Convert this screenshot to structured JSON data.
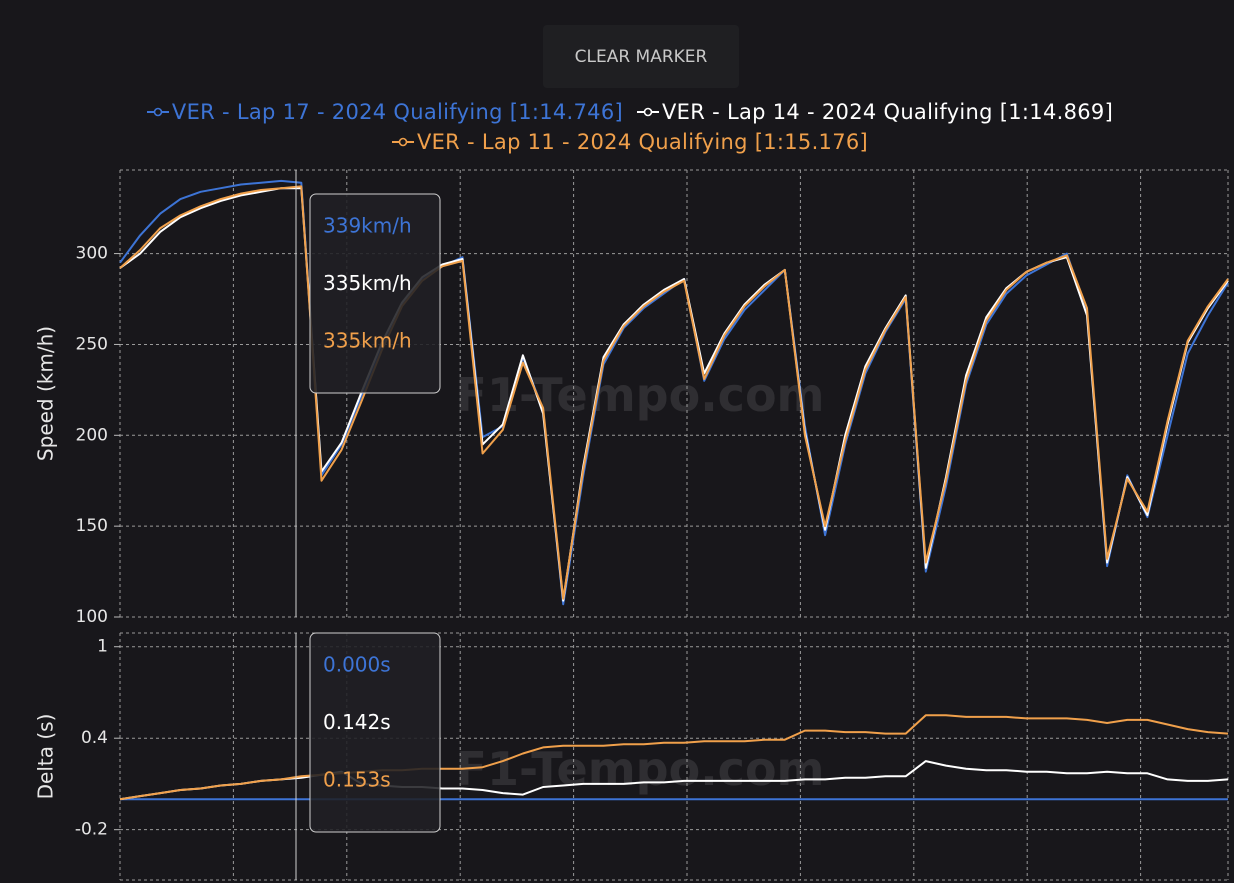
{
  "button": "CLEAR MARKER",
  "chart_data": [
    {
      "type": "line",
      "y_label": "Speed (km/h)",
      "watermark": "F1-Tempo.com",
      "ylim": [
        100,
        346
      ],
      "yticks": [
        100,
        150,
        200,
        250,
        300
      ],
      "grid": true,
      "marker_labels": [
        "339km/h",
        "335km/h",
        "335km/h"
      ],
      "series": [
        {
          "name": "VER - Lap 17 - 2024 Qualifying [1:14.746]",
          "color": "#3d74d6",
          "values": [
            295,
            310,
            322,
            330,
            334,
            336,
            338,
            339,
            340,
            339,
            178,
            195,
            222,
            249,
            272,
            286,
            293,
            298,
            199,
            205,
            243,
            214,
            107,
            178,
            239,
            259,
            270,
            278,
            286,
            230,
            253,
            269,
            280,
            291,
            205,
            145,
            195,
            234,
            257,
            275,
            125,
            172,
            228,
            261,
            278,
            288,
            294,
            300,
            268,
            128,
            178,
            155,
            200,
            245,
            266,
            284
          ]
        },
        {
          "name": "VER - Lap 14 - 2024 Qualifying [1:14.869]",
          "color": "#ffffff",
          "values": [
            292,
            300,
            312,
            320,
            325,
            329,
            332,
            334,
            336,
            336,
            180,
            196,
            224,
            251,
            273,
            287,
            294,
            297,
            195,
            206,
            244,
            212,
            109,
            183,
            243,
            261,
            272,
            280,
            286,
            234,
            256,
            272,
            283,
            291,
            202,
            148,
            200,
            238,
            259,
            277,
            127,
            177,
            233,
            265,
            281,
            290,
            295,
            298,
            266,
            130,
            177,
            156,
            206,
            251,
            270,
            285
          ]
        },
        {
          "name": "VER - Lap 11 - 2024 Qualifying [1:15.176]",
          "color": "#f0a04b",
          "values": [
            292,
            302,
            314,
            321,
            326,
            330,
            333,
            335,
            336,
            337,
            175,
            192,
            219,
            247,
            271,
            285,
            293,
            296,
            190,
            203,
            240,
            215,
            110,
            181,
            241,
            260,
            271,
            279,
            285,
            231,
            255,
            271,
            282,
            291,
            200,
            150,
            197,
            236,
            258,
            276,
            130,
            175,
            230,
            263,
            280,
            290,
            295,
            299,
            270,
            132,
            176,
            158,
            208,
            252,
            271,
            286
          ]
        }
      ]
    },
    {
      "type": "line",
      "y_label": "Delta (s)",
      "watermark": "F1-Tempo.com",
      "ylim": [
        -0.53,
        1.09
      ],
      "yticks": [
        -0.2,
        0.4,
        1
      ],
      "grid": true,
      "marker_labels": [
        "0.000s",
        "0.142s",
        "0.153s"
      ],
      "series": [
        {
          "color": "#3d74d6",
          "values": [
            0,
            0,
            0,
            0,
            0,
            0,
            0,
            0,
            0,
            0,
            0,
            0,
            0,
            0,
            0,
            0,
            0,
            0,
            0,
            0,
            0,
            0,
            0,
            0,
            0,
            0,
            0,
            0,
            0,
            0,
            0,
            0,
            0,
            0,
            0,
            0,
            0,
            0,
            0,
            0,
            0,
            0,
            0,
            0,
            0,
            0,
            0,
            0,
            0,
            0,
            0,
            0,
            0,
            0,
            0,
            0
          ]
        },
        {
          "color": "#ffffff",
          "values": [
            0,
            0.02,
            0.04,
            0.06,
            0.07,
            0.09,
            0.1,
            0.12,
            0.13,
            0.14,
            0.16,
            0.18,
            0.1,
            0.09,
            0.08,
            0.08,
            0.07,
            0.07,
            0.06,
            0.04,
            0.03,
            0.08,
            0.09,
            0.1,
            0.1,
            0.1,
            0.11,
            0.11,
            0.12,
            0.12,
            0.12,
            0.12,
            0.12,
            0.12,
            0.13,
            0.13,
            0.14,
            0.14,
            0.15,
            0.15,
            0.25,
            0.22,
            0.2,
            0.19,
            0.19,
            0.18,
            0.18,
            0.17,
            0.17,
            0.18,
            0.17,
            0.17,
            0.13,
            0.12,
            0.12,
            0.13
          ]
        },
        {
          "color": "#f0a04b",
          "values": [
            0,
            0.02,
            0.04,
            0.06,
            0.07,
            0.09,
            0.1,
            0.12,
            0.13,
            0.15,
            0.16,
            0.17,
            0.18,
            0.19,
            0.19,
            0.2,
            0.2,
            0.2,
            0.21,
            0.25,
            0.3,
            0.34,
            0.35,
            0.35,
            0.35,
            0.36,
            0.36,
            0.37,
            0.37,
            0.38,
            0.38,
            0.38,
            0.39,
            0.39,
            0.45,
            0.45,
            0.44,
            0.44,
            0.43,
            0.43,
            0.55,
            0.55,
            0.54,
            0.54,
            0.54,
            0.53,
            0.53,
            0.53,
            0.52,
            0.5,
            0.52,
            0.52,
            0.49,
            0.46,
            0.44,
            0.43
          ]
        }
      ]
    }
  ]
}
